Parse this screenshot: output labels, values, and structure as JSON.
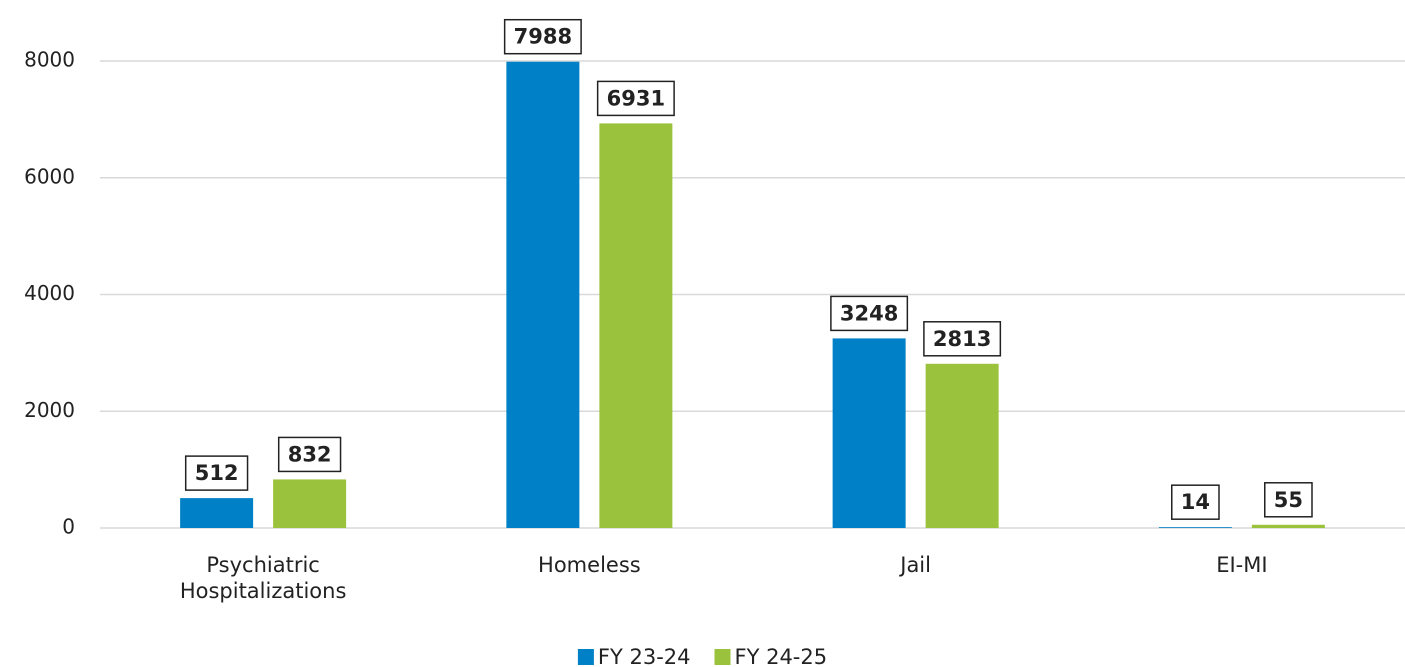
{
  "chart_data": {
    "type": "bar",
    "categories": [
      "Psychiatric Hospitalizations",
      "Homeless",
      "Jail",
      "EI-MI"
    ],
    "series": [
      {
        "name": "FY 23-24",
        "color": "#0080c6",
        "values": [
          512,
          7988,
          3248,
          14
        ]
      },
      {
        "name": "FY 24-25",
        "color": "#9bc23c",
        "values": [
          832,
          6931,
          2813,
          55
        ]
      }
    ],
    "ylim": [
      0,
      8000
    ],
    "yticks": [
      0,
      2000,
      4000,
      6000,
      8000
    ],
    "grid": true,
    "legend": "bottom"
  }
}
